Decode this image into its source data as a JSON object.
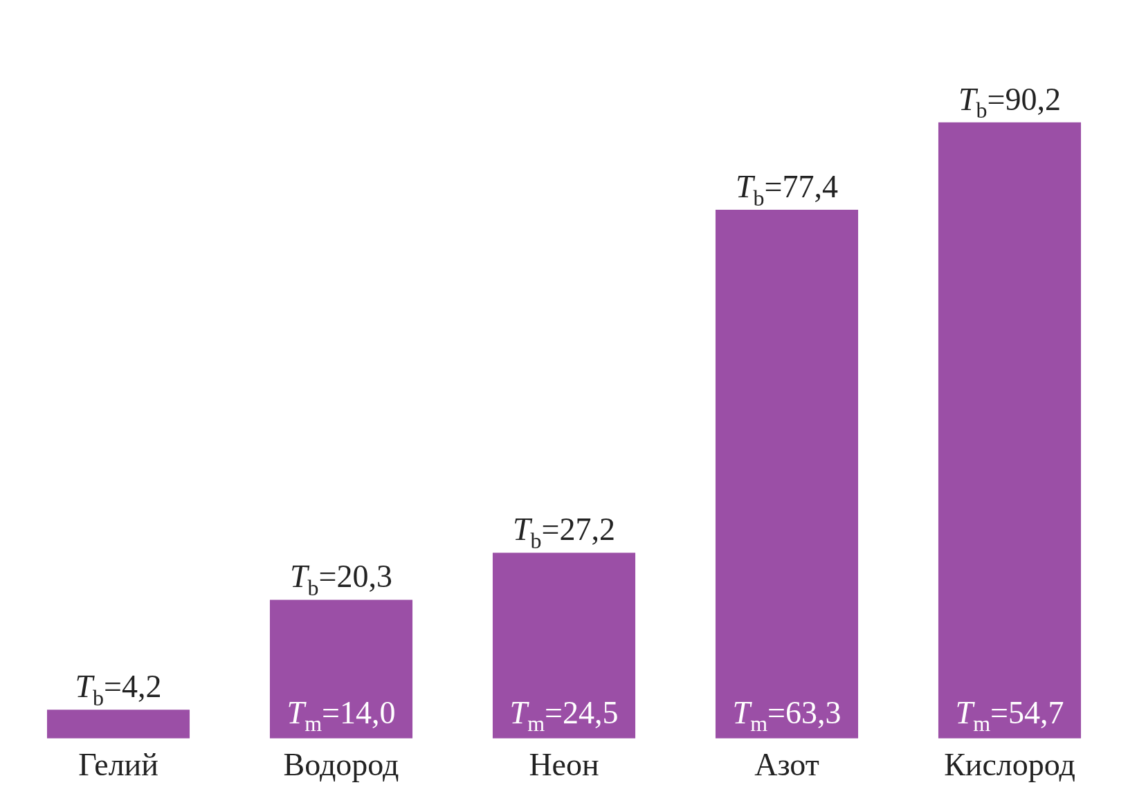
{
  "chart_data": {
    "type": "bar",
    "categories": [
      "Гелий",
      "Водород",
      "Неон",
      "Азот",
      "Кислород"
    ],
    "values": [
      4.2,
      20.3,
      27.2,
      77.4,
      90.2
    ],
    "value_labels": [
      "T$_{b}$=4,2",
      "T$_{b}$=20,3",
      "T$_{b}$=27,2",
      "T$_{b}$=77,4",
      "T$_{b}$=90,2"
    ],
    "color": "#9b4fa6",
    "tick_labels": "x",
    "grid": false,
    "legend": false,
    "annotations": [
      "T$_{m}$=14,0",
      "T$_{m}$=24,5",
      "T$_{m}$=63,3",
      "T$_{m}$=54,7"
    ]
  }
}
